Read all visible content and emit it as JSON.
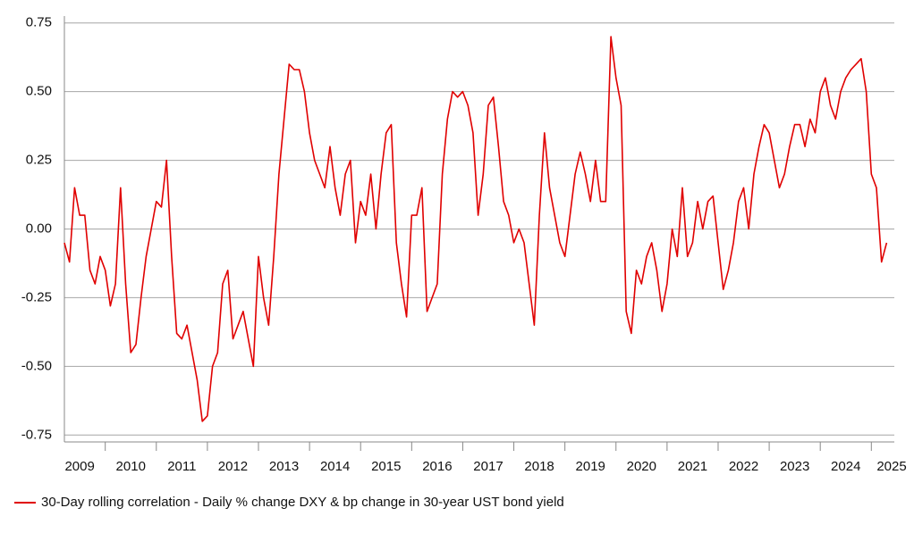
{
  "chart_data": {
    "type": "line",
    "x": [
      2009.2,
      2009.3,
      2009.4,
      2009.5,
      2009.6,
      2009.7,
      2009.8,
      2009.9,
      2010.0,
      2010.1,
      2010.2,
      2010.3,
      2010.4,
      2010.5,
      2010.6,
      2010.7,
      2010.8,
      2010.9,
      2011.0,
      2011.1,
      2011.2,
      2011.3,
      2011.4,
      2011.5,
      2011.6,
      2011.7,
      2011.8,
      2011.9,
      2012.0,
      2012.1,
      2012.2,
      2012.3,
      2012.4,
      2012.5,
      2012.6,
      2012.7,
      2012.8,
      2012.9,
      2013.0,
      2013.1,
      2013.2,
      2013.3,
      2013.4,
      2013.5,
      2013.6,
      2013.7,
      2013.8,
      2013.9,
      2014.0,
      2014.1,
      2014.2,
      2014.3,
      2014.4,
      2014.5,
      2014.6,
      2014.7,
      2014.8,
      2014.9,
      2015.0,
      2015.1,
      2015.2,
      2015.3,
      2015.4,
      2015.5,
      2015.6,
      2015.7,
      2015.8,
      2015.9,
      2016.0,
      2016.1,
      2016.2,
      2016.3,
      2016.4,
      2016.5,
      2016.6,
      2016.7,
      2016.8,
      2016.9,
      2017.0,
      2017.1,
      2017.2,
      2017.3,
      2017.4,
      2017.5,
      2017.6,
      2017.7,
      2017.8,
      2017.9,
      2018.0,
      2018.1,
      2018.2,
      2018.3,
      2018.4,
      2018.5,
      2018.6,
      2018.7,
      2018.8,
      2018.9,
      2019.0,
      2019.1,
      2019.2,
      2019.3,
      2019.4,
      2019.5,
      2019.6,
      2019.7,
      2019.8,
      2019.9,
      2020.0,
      2020.1,
      2020.2,
      2020.3,
      2020.4,
      2020.5,
      2020.6,
      2020.7,
      2020.8,
      2020.9,
      2021.0,
      2021.1,
      2021.2,
      2021.3,
      2021.4,
      2021.5,
      2021.6,
      2021.7,
      2021.8,
      2021.9,
      2022.0,
      2022.1,
      2022.2,
      2022.3,
      2022.4,
      2022.5,
      2022.6,
      2022.7,
      2022.8,
      2022.9,
      2023.0,
      2023.1,
      2023.2,
      2023.3,
      2023.4,
      2023.5,
      2023.6,
      2023.7,
      2023.8,
      2023.9,
      2024.0,
      2024.1,
      2024.2,
      2024.3,
      2024.4,
      2024.5,
      2024.6,
      2024.7,
      2024.8,
      2024.9,
      2025.0,
      2025.1,
      2025.2,
      2025.3
    ],
    "series": [
      {
        "name": "30-Day rolling correlation - Daily % change DXY & bp change in 30-year UST bond yield",
        "color": "#e00000",
        "values": [
          -0.05,
          -0.12,
          0.15,
          0.05,
          0.05,
          -0.15,
          -0.2,
          -0.1,
          -0.15,
          -0.28,
          -0.2,
          0.15,
          -0.2,
          -0.45,
          -0.42,
          -0.25,
          -0.1,
          0.0,
          0.1,
          0.08,
          0.25,
          -0.1,
          -0.38,
          -0.4,
          -0.35,
          -0.45,
          -0.55,
          -0.7,
          -0.68,
          -0.5,
          -0.45,
          -0.2,
          -0.15,
          -0.4,
          -0.35,
          -0.3,
          -0.4,
          -0.5,
          -0.1,
          -0.25,
          -0.35,
          -0.1,
          0.2,
          0.4,
          0.6,
          0.58,
          0.58,
          0.5,
          0.35,
          0.25,
          0.2,
          0.15,
          0.3,
          0.15,
          0.05,
          0.2,
          0.25,
          -0.05,
          0.1,
          0.05,
          0.2,
          0.0,
          0.2,
          0.35,
          0.38,
          -0.05,
          -0.2,
          -0.32,
          0.05,
          0.05,
          0.15,
          -0.3,
          -0.25,
          -0.2,
          0.2,
          0.4,
          0.5,
          0.48,
          0.5,
          0.45,
          0.35,
          0.05,
          0.2,
          0.45,
          0.48,
          0.3,
          0.1,
          0.05,
          -0.05,
          0.0,
          -0.05,
          -0.2,
          -0.35,
          0.05,
          0.35,
          0.15,
          0.05,
          -0.05,
          -0.1,
          0.05,
          0.2,
          0.28,
          0.2,
          0.1,
          0.25,
          0.1,
          0.1,
          0.7,
          0.55,
          0.45,
          -0.3,
          -0.38,
          -0.15,
          -0.2,
          -0.1,
          -0.05,
          -0.15,
          -0.3,
          -0.2,
          0.0,
          -0.1,
          0.15,
          -0.1,
          -0.05,
          0.1,
          0.0,
          0.1,
          0.12,
          -0.05,
          -0.22,
          -0.15,
          -0.05,
          0.1,
          0.15,
          0.0,
          0.2,
          0.3,
          0.38,
          0.35,
          0.25,
          0.15,
          0.2,
          0.3,
          0.38,
          0.38,
          0.3,
          0.4,
          0.35,
          0.5,
          0.55,
          0.45,
          0.4,
          0.5,
          0.55,
          0.58,
          0.6,
          0.62,
          0.5,
          0.2,
          0.15,
          -0.12,
          -0.05
        ]
      }
    ],
    "xlim": [
      2009.2,
      2025.45
    ],
    "xticks": [
      {
        "value": 2009.5,
        "label": "2009"
      },
      {
        "value": 2010.5,
        "label": "2010"
      },
      {
        "value": 2011.5,
        "label": "2011"
      },
      {
        "value": 2012.5,
        "label": "2012"
      },
      {
        "value": 2013.5,
        "label": "2013"
      },
      {
        "value": 2014.5,
        "label": "2014"
      },
      {
        "value": 2015.5,
        "label": "2015"
      },
      {
        "value": 2016.5,
        "label": "2016"
      },
      {
        "value": 2017.5,
        "label": "2017"
      },
      {
        "value": 2018.5,
        "label": "2018"
      },
      {
        "value": 2019.5,
        "label": "2019"
      },
      {
        "value": 2020.5,
        "label": "2020"
      },
      {
        "value": 2021.5,
        "label": "2021"
      },
      {
        "value": 2022.5,
        "label": "2022"
      },
      {
        "value": 2023.5,
        "label": "2023"
      },
      {
        "value": 2024.5,
        "label": "2024"
      },
      {
        "value": 2025.5,
        "label": "2025"
      }
    ],
    "xtick_marks": [
      2010,
      2011,
      2012,
      2013,
      2014,
      2015,
      2016,
      2017,
      2018,
      2019,
      2020,
      2021,
      2022,
      2023,
      2024,
      2025
    ],
    "ylim": [
      -0.775,
      0.775
    ],
    "yticks": [
      {
        "value": 0.75,
        "label": "0.75"
      },
      {
        "value": 0.5,
        "label": "0.50"
      },
      {
        "value": 0.25,
        "label": "0.25"
      },
      {
        "value": 0,
        "label": "0.00"
      },
      {
        "value": -0.25,
        "label": "-0.25"
      },
      {
        "value": -0.5,
        "label": "-0.50"
      },
      {
        "value": -0.75,
        "label": "-0.75"
      }
    ],
    "grid": true
  }
}
